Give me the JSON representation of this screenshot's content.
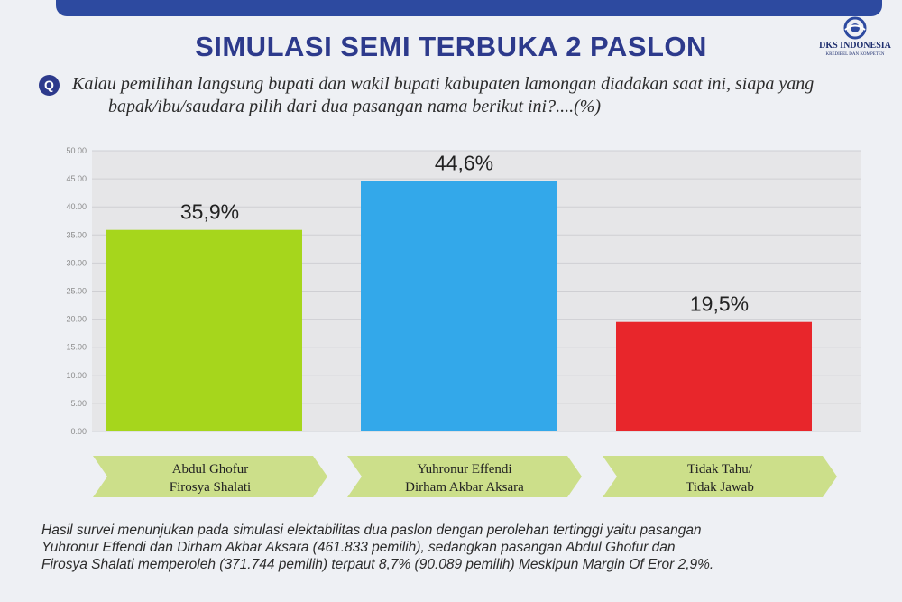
{
  "header": {
    "title": "SIMULASI SEMI TERBUKA 2 PASLON",
    "logo_text": "DKS INDONESIA",
    "logo_subtext": "KREDIBEL DAN KOMPETEN"
  },
  "question": {
    "icon_label": "Q",
    "line1": "Kalau pemilihan langsung bupati dan wakil bupati kabupaten lamongan diadakan saat ini, siapa yang",
    "line2": "bapak/ibu/saudara pilih dari dua pasangan nama berikut ini?....(%)"
  },
  "chart_data": {
    "type": "bar",
    "categories": [
      [
        "Abdul Ghofur",
        "Firosya Shalati"
      ],
      [
        "Yuhronur Effendi",
        "Dirham Akbar Aksara"
      ],
      [
        "Tidak Tahu/",
        "Tidak Jawab"
      ]
    ],
    "values": [
      35.9,
      44.6,
      19.5
    ],
    "value_labels": [
      "35,9%",
      "44,6%",
      "19,5%"
    ],
    "ylim": [
      0,
      50
    ],
    "yticks": [
      "0.00",
      "5.00",
      "10.00",
      "15.00",
      "20.00",
      "25.00",
      "30.00",
      "35.00",
      "40.00",
      "45.00",
      "50.00"
    ],
    "grid": true,
    "colors": [
      "#a6d61c",
      "#33a8ea",
      "#e8262b"
    ],
    "label_box_color": "#ccdf8a"
  },
  "footnote": {
    "line1": "Hasil survei menunjukan pada simulasi elektabilitas dua paslon dengan perolehan tertinggi yaitu pasangan",
    "line2": "Yuhronur Effendi dan Dirham Akbar Aksara (461.833 pemilih), sedangkan pasangan Abdul Ghofur dan",
    "line3": "Firosya Shalati memperoleh (371.744 pemilih) terpaut 8,7% (90.089 pemilih) Meskipun Margin Of Eror 2,9%."
  }
}
